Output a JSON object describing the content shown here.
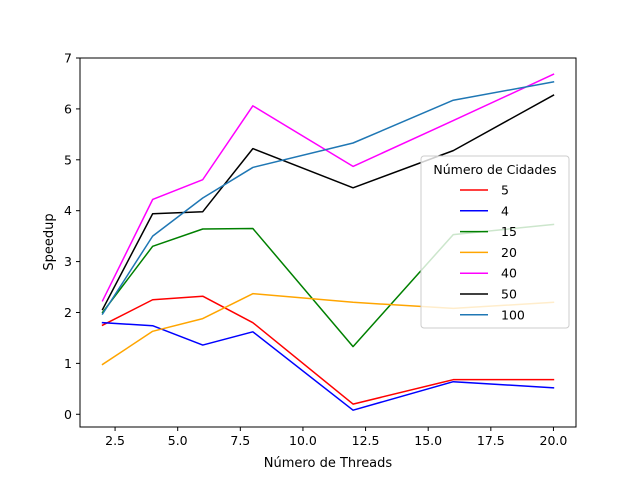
{
  "chart_data": {
    "type": "line",
    "title": "",
    "xlabel": "Número de Threads",
    "ylabel": "Speedup",
    "xlim": [
      1.1,
      20.9
    ],
    "ylim": [
      -0.25,
      7.0
    ],
    "xticks": [
      2.5,
      5.0,
      7.5,
      10.0,
      12.5,
      15.0,
      17.5,
      20.0
    ],
    "xtick_labels": [
      "2.5",
      "5.0",
      "7.5",
      "10.0",
      "12.5",
      "15.0",
      "17.5",
      "20.0"
    ],
    "yticks": [
      0,
      1,
      2,
      3,
      4,
      5,
      6,
      7
    ],
    "ytick_labels": [
      "0",
      "1",
      "2",
      "3",
      "4",
      "5",
      "6",
      "7"
    ],
    "grid": false,
    "legend": {
      "title": "Número de Cidades",
      "placement": "center-right"
    },
    "x": [
      2,
      4,
      6,
      8,
      12,
      16,
      20
    ],
    "series": [
      {
        "name": "5",
        "color": "#ff0000",
        "values": [
          1.75,
          2.25,
          2.32,
          1.8,
          0.2,
          0.68,
          0.68
        ]
      },
      {
        "name": "4",
        "color": "#0000ff",
        "values": [
          1.8,
          1.74,
          1.36,
          1.62,
          0.08,
          0.64,
          0.52
        ]
      },
      {
        "name": "15",
        "color": "#008000",
        "values": [
          2.0,
          3.3,
          3.64,
          3.65,
          1.33,
          3.53,
          3.73
        ]
      },
      {
        "name": "20",
        "color": "#ffa500",
        "values": [
          0.98,
          1.63,
          1.88,
          2.37,
          2.2,
          2.08,
          2.2
        ]
      },
      {
        "name": "40",
        "color": "#ff00ff",
        "values": [
          2.23,
          4.22,
          4.61,
          6.06,
          4.87,
          5.77,
          6.68
        ]
      },
      {
        "name": "50",
        "color": "#000000",
        "values": [
          2.06,
          3.94,
          3.98,
          5.22,
          4.45,
          5.18,
          6.27
        ]
      },
      {
        "name": "100",
        "color": "#1f77b4",
        "values": [
          1.97,
          3.5,
          4.25,
          4.85,
          5.33,
          6.17,
          6.53
        ]
      }
    ]
  }
}
